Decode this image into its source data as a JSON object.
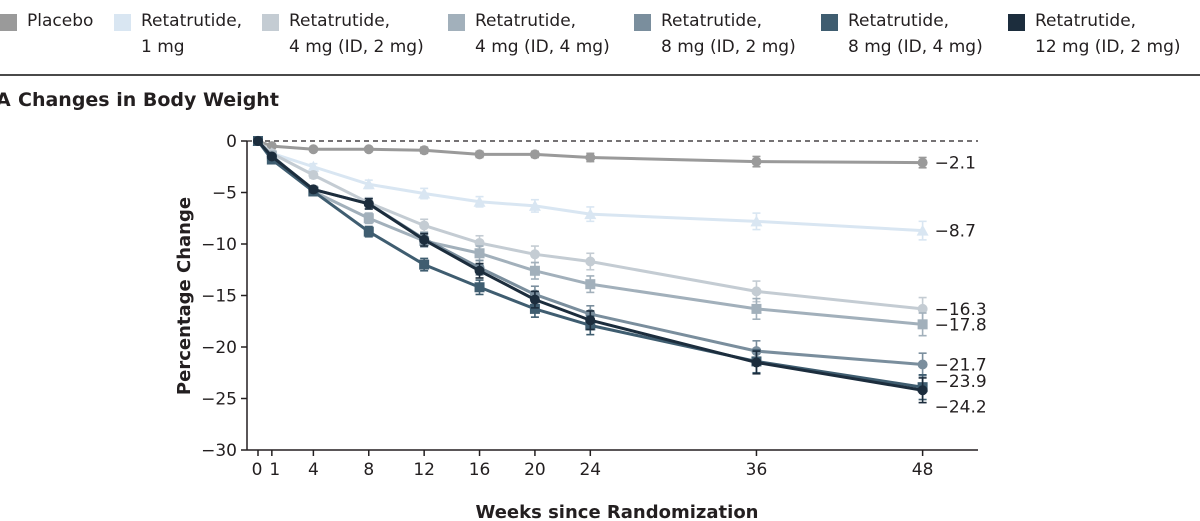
{
  "legend": [
    {
      "label_lines": [
        "Placebo"
      ],
      "color": "#9a9a9a"
    },
    {
      "label_lines": [
        "Retatrutide,",
        "1 mg"
      ],
      "color": "#d9e6f2"
    },
    {
      "label_lines": [
        "Retatrutide,",
        "4 mg (ID, 2 mg)"
      ],
      "color": "#c4ccd3"
    },
    {
      "label_lines": [
        "Retatrutide,",
        "4 mg (ID, 4 mg)"
      ],
      "color": "#a2b0bb"
    },
    {
      "label_lines": [
        "Retatrutide,",
        "8 mg (ID, 2 mg)"
      ],
      "color": "#7a8e9d"
    },
    {
      "label_lines": [
        "Retatrutide,",
        "8 mg (ID, 4 mg)"
      ],
      "color": "#3f5d70"
    },
    {
      "label_lines": [
        "Retatrutide,",
        "12 mg (ID, 2 mg)"
      ],
      "color": "#1c2d3d"
    }
  ],
  "panel_letter": "A",
  "chart_data": {
    "type": "line",
    "title": "Changes in Body Weight",
    "xlabel": "Weeks since Randomization",
    "ylabel": "Percentage Change",
    "xticks": [
      0,
      1,
      4,
      8,
      12,
      16,
      20,
      24,
      36,
      48
    ],
    "yticks": [
      0,
      -5,
      -10,
      -15,
      -20,
      -25,
      -30
    ],
    "xlim": [
      0,
      52
    ],
    "ylim": [
      -30,
      0
    ],
    "reference_line": 0,
    "grid": false,
    "series": [
      {
        "name": "Placebo",
        "color": "#9a9a9a",
        "marker": "circle",
        "x": [
          0,
          1,
          4,
          8,
          12,
          16,
          20,
          24,
          36,
          48
        ],
        "values": [
          0,
          -0.5,
          -0.8,
          -0.8,
          -0.9,
          -1.3,
          -1.3,
          -1.6,
          -2.0,
          -2.1
        ],
        "errors": [
          0,
          0.2,
          0.2,
          0.2,
          0.3,
          0.3,
          0.3,
          0.4,
          0.5,
          0.5
        ],
        "end_label": "−2.1"
      },
      {
        "name": "Retatrutide, 1 mg",
        "color": "#d9e6f2",
        "marker": "triangle",
        "x": [
          0,
          1,
          4,
          8,
          12,
          16,
          20,
          24,
          36,
          48
        ],
        "values": [
          0,
          -1.2,
          -2.5,
          -4.2,
          -5.1,
          -5.9,
          -6.3,
          -7.1,
          -7.8,
          -8.7
        ],
        "errors": [
          0,
          0.2,
          0.3,
          0.4,
          0.5,
          0.5,
          0.6,
          0.7,
          0.8,
          0.9
        ],
        "end_label": "−8.7"
      },
      {
        "name": "Retatrutide, 4 mg (ID, 2 mg)",
        "color": "#c4ccd3",
        "marker": "circle",
        "x": [
          0,
          1,
          4,
          8,
          12,
          16,
          20,
          24,
          36,
          48
        ],
        "values": [
          0,
          -1.2,
          -3.3,
          -6.0,
          -8.2,
          -9.9,
          -11.0,
          -11.7,
          -14.6,
          -16.3
        ],
        "errors": [
          0,
          0.2,
          0.3,
          0.5,
          0.6,
          0.7,
          0.8,
          0.8,
          1.0,
          1.1
        ],
        "end_label": "−16.3"
      },
      {
        "name": "Retatrutide, 4 mg (ID, 4 mg)",
        "color": "#a2b0bb",
        "marker": "square",
        "x": [
          0,
          1,
          4,
          8,
          12,
          16,
          20,
          24,
          36,
          48
        ],
        "values": [
          0,
          -1.4,
          -4.9,
          -7.5,
          -9.7,
          -10.9,
          -12.6,
          -13.9,
          -16.3,
          -17.8
        ],
        "errors": [
          0,
          0.2,
          0.3,
          0.5,
          0.6,
          0.7,
          0.8,
          0.8,
          1.0,
          1.1
        ],
        "end_label": "−17.8"
      },
      {
        "name": "Retatrutide, 8 mg (ID, 2 mg)",
        "color": "#7a8e9d",
        "marker": "circle",
        "x": [
          0,
          1,
          4,
          8,
          12,
          16,
          20,
          24,
          36,
          48
        ],
        "values": [
          0,
          -1.5,
          -4.7,
          -6.1,
          -9.5,
          -12.3,
          -14.9,
          -16.8,
          -20.4,
          -21.7
        ],
        "errors": [
          0,
          0.2,
          0.3,
          0.5,
          0.6,
          0.7,
          0.8,
          0.8,
          1.0,
          1.1
        ],
        "end_label": "−21.7"
      },
      {
        "name": "Retatrutide, 8 mg (ID, 4 mg)",
        "color": "#3f5d70",
        "marker": "square",
        "x": [
          0,
          1,
          4,
          8,
          12,
          16,
          20,
          24,
          36,
          48
        ],
        "values": [
          0,
          -1.8,
          -4.9,
          -8.8,
          -12.0,
          -14.2,
          -16.3,
          -17.9,
          -21.4,
          -23.9
        ],
        "errors": [
          0,
          0.2,
          0.3,
          0.5,
          0.6,
          0.7,
          0.8,
          0.9,
          1.1,
          1.2
        ],
        "end_label": "−23.9"
      },
      {
        "name": "Retatrutide, 12 mg (ID, 2 mg)",
        "color": "#1c2d3d",
        "marker": "circle",
        "x": [
          0,
          1,
          4,
          8,
          12,
          16,
          20,
          24,
          36,
          48
        ],
        "values": [
          0,
          -1.5,
          -4.7,
          -6.1,
          -9.6,
          -12.6,
          -15.4,
          -17.4,
          -21.5,
          -24.2
        ],
        "errors": [
          0,
          0.2,
          0.3,
          0.5,
          0.6,
          0.7,
          0.8,
          0.9,
          1.1,
          1.2
        ],
        "end_label": "−24.2"
      }
    ]
  }
}
